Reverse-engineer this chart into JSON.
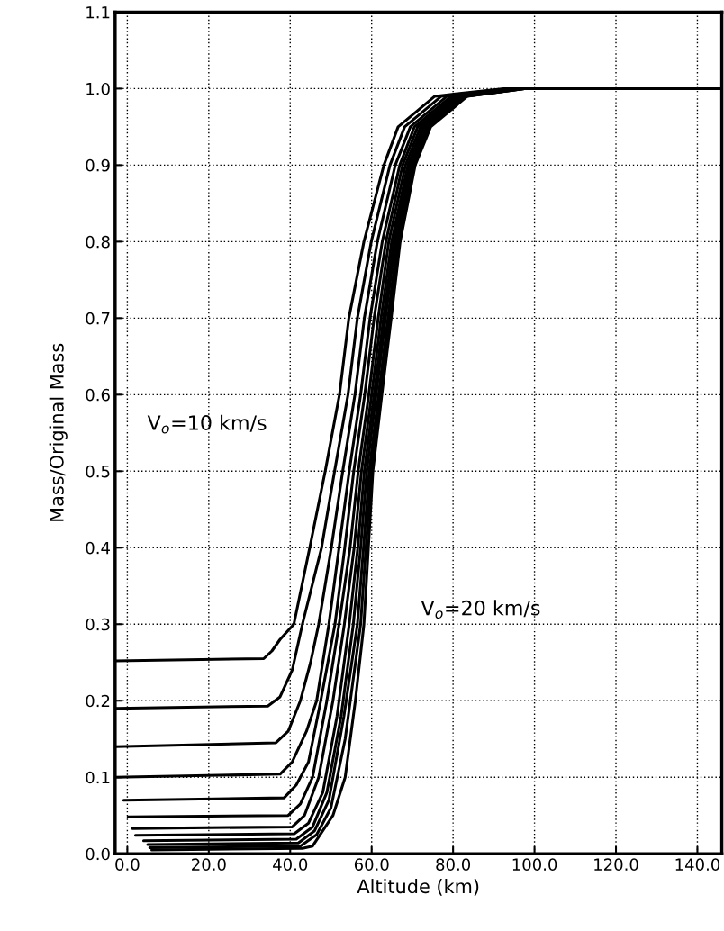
{
  "chart_data": {
    "type": "line",
    "xlabel": "Altitude (km)",
    "ylabel": "Mass/Original Mass",
    "xlim": [
      -3,
      146
    ],
    "ylim": [
      0,
      1.1
    ],
    "xticks": [
      {
        "value": 0,
        "label": "0.0"
      },
      {
        "value": 20,
        "label": "20.0"
      },
      {
        "value": 40,
        "label": "40.0"
      },
      {
        "value": 60,
        "label": "60.0"
      },
      {
        "value": 80,
        "label": "80.0"
      },
      {
        "value": 100,
        "label": "100.0"
      },
      {
        "value": 120,
        "label": "120.0"
      },
      {
        "value": 140,
        "label": "140.0"
      }
    ],
    "yticks": [
      {
        "value": 0,
        "label": "0.0"
      },
      0.1,
      0.2,
      0.3,
      0.4,
      0.5,
      0.6,
      0.7,
      0.8,
      0.9,
      {
        "value": 1.0,
        "label": "1.0"
      },
      1.1
    ],
    "grid": true,
    "line_style": "solid",
    "marker": "none",
    "annotations": [
      "V$_{o}$=10 km/s",
      "V$_{o}$=20 km/s"
    ],
    "series": [
      {
        "color": "#000000",
        "x": [
          -3,
          33.5,
          35.5,
          37.5,
          40.9,
          44.8,
          48.6,
          52.1,
          54.4,
          58.1,
          63,
          66.5,
          75.5,
          92.5,
          146
        ],
        "values": [
          0.252,
          0.255,
          0.265,
          0.28,
          0.3,
          0.4,
          0.5,
          0.6,
          0.7,
          0.8,
          0.9,
          0.95,
          0.99,
          1.0,
          1.0
        ]
      },
      {
        "color": "#000000",
        "x": [
          -3,
          34.5,
          37.5,
          40.5,
          43,
          47.7,
          50.9,
          54.2,
          56.5,
          59.9,
          64.5,
          68.1,
          77.1,
          93.5,
          146
        ],
        "values": [
          0.19,
          0.193,
          0.205,
          0.24,
          0.3,
          0.4,
          0.5,
          0.6,
          0.7,
          0.8,
          0.9,
          0.95,
          0.99,
          1.0,
          1.0
        ]
      },
      {
        "color": "#000000",
        "x": [
          -3,
          36.5,
          39.5,
          42.5,
          45,
          47,
          50.1,
          52.9,
          55.9,
          58.2,
          61.4,
          65.8,
          69.5,
          78.5,
          94.5,
          146
        ],
        "values": [
          0.14,
          0.145,
          0.16,
          0.2,
          0.25,
          0.3,
          0.4,
          0.5,
          0.6,
          0.7,
          0.8,
          0.9,
          0.95,
          0.99,
          1.0,
          1.0
        ]
      },
      {
        "color": "#000000",
        "x": [
          -3,
          37.5,
          40.5,
          44,
          46.5,
          49.5,
          52,
          54.5,
          57.3,
          59.6,
          62.6,
          66.9,
          70.5,
          79.5,
          95,
          146
        ],
        "values": [
          0.1,
          0.104,
          0.12,
          0.16,
          0.2,
          0.3,
          0.4,
          0.5,
          0.6,
          0.7,
          0.8,
          0.9,
          0.95,
          0.99,
          1.0,
          1.0
        ]
      },
      {
        "color": "#000000",
        "x": [
          -0.9,
          38.5,
          41.5,
          44.5,
          47.5,
          51,
          53.4,
          55.6,
          58.3,
          60.6,
          63.5,
          67.6,
          71.3,
          80.3,
          95.5,
          146
        ],
        "values": [
          0.07,
          0.073,
          0.09,
          0.12,
          0.2,
          0.3,
          0.4,
          0.5,
          0.6,
          0.7,
          0.8,
          0.9,
          0.95,
          0.99,
          1.0,
          1.0
        ]
      },
      {
        "color": "#000000",
        "x": [
          0.2,
          39.5,
          42.5,
          45.5,
          49,
          52,
          54.7,
          56.7,
          59.3,
          61.6,
          64.2,
          68.3,
          72,
          81,
          96,
          146
        ],
        "values": [
          0.048,
          0.05,
          0.065,
          0.1,
          0.2,
          0.3,
          0.4,
          0.5,
          0.6,
          0.7,
          0.8,
          0.9,
          0.95,
          0.99,
          1.0,
          1.0
        ]
      },
      {
        "color": "#000000",
        "x": [
          1.3,
          40.5,
          43.5,
          47,
          50.5,
          53.3,
          55.7,
          57.5,
          60,
          62.3,
          64.9,
          68.9,
          72.6,
          81.6,
          96.5,
          146
        ],
        "values": [
          0.033,
          0.035,
          0.05,
          0.1,
          0.2,
          0.3,
          0.4,
          0.5,
          0.6,
          0.7,
          0.8,
          0.9,
          0.95,
          0.99,
          1.0,
          1.0
        ]
      },
      {
        "color": "#000000",
        "x": [
          2,
          41,
          44.5,
          48,
          51.5,
          54.5,
          56.6,
          58.2,
          60.6,
          62.9,
          65.4,
          69.3,
          73.1,
          82.1,
          96.5,
          146
        ],
        "values": [
          0.024,
          0.026,
          0.04,
          0.08,
          0.18,
          0.3,
          0.4,
          0.5,
          0.6,
          0.7,
          0.8,
          0.9,
          0.95,
          0.99,
          1.0,
          1.0
        ]
      },
      {
        "color": "#000000",
        "x": [
          4,
          41.5,
          45.5,
          49,
          52.5,
          55.5,
          57.3,
          58.8,
          61.1,
          63.4,
          65.8,
          69.7,
          73.5,
          82.5,
          97,
          146
        ],
        "values": [
          0.017,
          0.019,
          0.035,
          0.08,
          0.18,
          0.3,
          0.4,
          0.5,
          0.6,
          0.7,
          0.8,
          0.9,
          0.95,
          0.99,
          1.0,
          1.0
        ]
      },
      {
        "color": "#000000",
        "x": [
          5,
          42,
          46,
          49.5,
          53.2,
          56.5,
          58,
          59.4,
          61.7,
          64,
          66.3,
          70.1,
          73.9,
          82.9,
          97.5,
          146
        ],
        "values": [
          0.012,
          0.014,
          0.03,
          0.07,
          0.18,
          0.3,
          0.4,
          0.5,
          0.6,
          0.7,
          0.8,
          0.9,
          0.95,
          0.99,
          1.0,
          1.0
        ]
      },
      {
        "color": "#000000",
        "x": [
          5.5,
          42.5,
          46.5,
          50,
          53.5,
          57.3,
          58.6,
          59.9,
          62.1,
          64.4,
          66.7,
          70.4,
          74.2,
          83.2,
          97.5,
          146
        ],
        "values": [
          0.008,
          0.01,
          0.025,
          0.06,
          0.15,
          0.3,
          0.4,
          0.5,
          0.6,
          0.7,
          0.8,
          0.9,
          0.95,
          0.99,
          1.0,
          1.0
        ]
      },
      {
        "color": "#000000",
        "x": [
          6,
          43,
          45.5,
          50.5,
          53.5,
          56,
          58.1,
          59.2,
          60.3,
          62.5,
          64.8,
          67,
          70.7,
          74.5,
          83.5,
          97.5,
          146
        ],
        "values": [
          0.005,
          0.007,
          0.01,
          0.05,
          0.1,
          0.2,
          0.3,
          0.4,
          0.5,
          0.6,
          0.7,
          0.8,
          0.9,
          0.95,
          0.99,
          1.0,
          1.0
        ]
      }
    ]
  }
}
